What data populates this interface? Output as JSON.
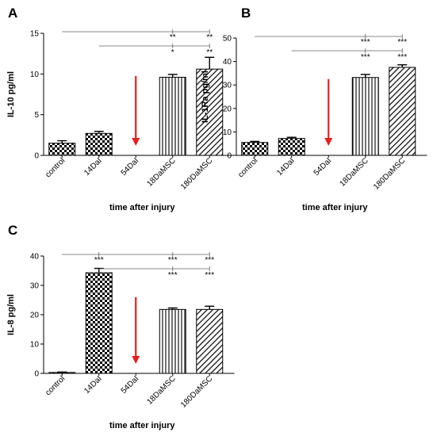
{
  "chart_data": [
    {
      "type": "bar",
      "panel": "A",
      "categories": [
        "control",
        "14DaI",
        "54DaI",
        "18DaMSC",
        "180DaMSC"
      ],
      "values": [
        1.5,
        2.7,
        null,
        9.6,
        10.6
      ],
      "errors": [
        0.3,
        0.25,
        null,
        0.35,
        1.45
      ],
      "patterns": [
        "checker",
        "checker",
        "none",
        "vertical",
        "diagonal"
      ],
      "xlabel": "time after injury",
      "ylabel": "IL-10 pg/ml",
      "ylim": [
        0,
        15
      ],
      "yticks": [
        "0",
        "5",
        "10",
        "15"
      ],
      "arrow_category": "54DaI",
      "brackets": [
        {
          "from": "control",
          "to": "180DaMSC",
          "labels": [
            {
              "at": "18DaMSC",
              "text": "**"
            },
            {
              "at": "180DaMSC",
              "text": "**"
            }
          ]
        },
        {
          "from": "14DaI",
          "to": "180DaMSC",
          "labels": [
            {
              "at": "18DaMSC",
              "text": "*"
            },
            {
              "at": "180DaMSC",
              "text": "**"
            }
          ]
        }
      ]
    },
    {
      "type": "bar",
      "panel": "B",
      "categories": [
        "control",
        "14DaI",
        "54DaI",
        "18DaMSC",
        "180DaMSC"
      ],
      "values": [
        5.5,
        7.2,
        null,
        33.2,
        37.5
      ],
      "errors": [
        0.45,
        0.5,
        null,
        1.3,
        1.1
      ],
      "patterns": [
        "checker",
        "checker",
        "none",
        "vertical",
        "diagonal"
      ],
      "xlabel": "time after injury",
      "ylabel": "IL-1Ra pg/ml",
      "ylim": [
        0,
        50
      ],
      "yticks": [
        "0",
        "10",
        "20",
        "30",
        "40",
        "50"
      ],
      "arrow_category": "54DaI",
      "brackets": [
        {
          "from": "control",
          "to": "180DaMSC",
          "labels": [
            {
              "at": "18DaMSC",
              "text": "***"
            },
            {
              "at": "180DaMSC",
              "text": "***"
            }
          ]
        },
        {
          "from": "14DaI",
          "to": "180DaMSC",
          "labels": [
            {
              "at": "18DaMSC",
              "text": "***"
            },
            {
              "at": "180DaMSC",
              "text": "***"
            }
          ]
        }
      ]
    },
    {
      "type": "bar",
      "panel": "C",
      "categories": [
        "control",
        "14DaI",
        "54DaI",
        "18DaMSC",
        "180DaMSC"
      ],
      "values": [
        0.3,
        34.3,
        null,
        21.8,
        21.8
      ],
      "errors": [
        0.15,
        1.5,
        null,
        0.5,
        1.1
      ],
      "patterns": [
        "checker",
        "checker",
        "none",
        "vertical",
        "diagonal"
      ],
      "xlabel": "time after injury",
      "ylabel": "IL-8 pg/ml",
      "ylim": [
        0,
        40
      ],
      "yticks": [
        "0",
        "10",
        "20",
        "30",
        "40"
      ],
      "arrow_category": "54DaI",
      "brackets": [
        {
          "from": "control",
          "to": "180DaMSC",
          "labels": [
            {
              "at": "14DaI",
              "text": "***"
            },
            {
              "at": "18DaMSC",
              "text": "***"
            },
            {
              "at": "180DaMSC",
              "text": "***"
            }
          ]
        },
        {
          "from": "14DaI",
          "to": "180DaMSC",
          "labels": [
            {
              "at": "18DaMSC",
              "text": "***"
            },
            {
              "at": "180DaMSC",
              "text": "***"
            }
          ]
        }
      ]
    }
  ],
  "colors": {
    "bar_stroke": "#000000",
    "arrow": "#e8201c",
    "bracket": "#606060"
  }
}
